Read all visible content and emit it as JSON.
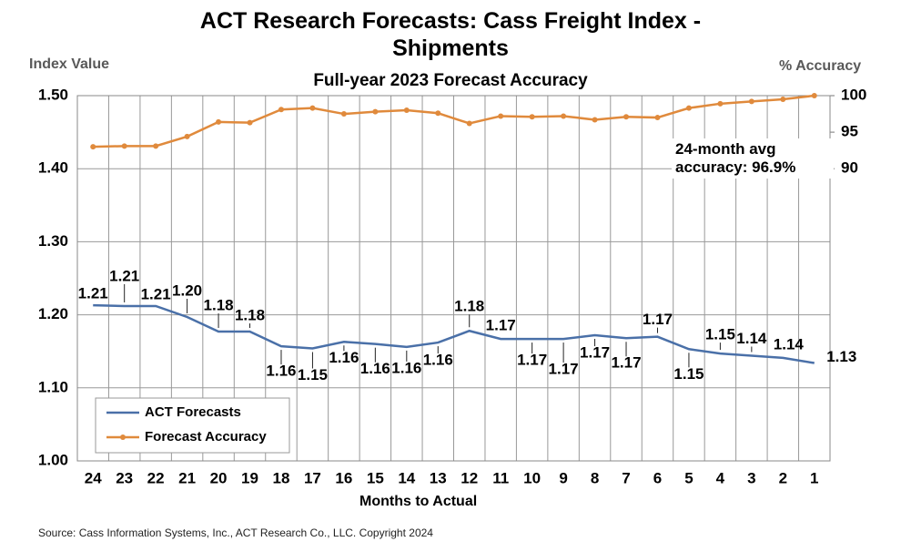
{
  "chart_data": {
    "type": "line",
    "title": "ACT Research Forecasts: Cass Freight Index - Shipments",
    "subtitle": "Full-year 2023 Forecast Accuracy",
    "x_label": "Months to Actual",
    "y_label": "Index Value",
    "y2_label": "% Accuracy",
    "annotation": "24-month avg accuracy: 96.9%",
    "source": "Source: Cass Information Systems, Inc., ACT Research Co., LLC. Copyright 2024",
    "categories": [
      "24",
      "23",
      "22",
      "21",
      "20",
      "19",
      "18",
      "17",
      "16",
      "15",
      "14",
      "13",
      "12",
      "11",
      "10",
      "9",
      "8",
      "7",
      "6",
      "5",
      "4",
      "3",
      "2",
      "1"
    ],
    "ylim": [
      1.0,
      1.5
    ],
    "yticks": [
      {
        "value": 1.0,
        "label": "1.00"
      },
      {
        "value": 1.1,
        "label": "1.10"
      },
      {
        "value": 1.2,
        "label": "1.20"
      },
      {
        "value": 1.3,
        "label": "1.30"
      },
      {
        "value": 1.4,
        "label": "1.40"
      },
      {
        "value": 1.5,
        "label": "1.50"
      }
    ],
    "y2lim": [
      50,
      100
    ],
    "y2ticks": [
      90,
      95,
      100
    ],
    "grid": true,
    "legend": "bottom-left",
    "series": [
      {
        "name": "ACT Forecasts",
        "color": "#4a70a8",
        "values": [
          1.213,
          1.212,
          1.212,
          1.197,
          1.177,
          1.177,
          1.157,
          1.154,
          1.163,
          1.16,
          1.156,
          1.162,
          1.178,
          1.167,
          1.167,
          1.167,
          1.172,
          1.168,
          1.17,
          1.153,
          1.147,
          1.144,
          1.141,
          1.134
        ],
        "value_labels": [
          "1.21",
          "1.21",
          "1.21",
          "1.20",
          "1.18",
          "1.18",
          "1.16",
          "1.15",
          "1.16",
          "1.16",
          "1.16",
          "1.16",
          "1.18",
          "1.17",
          "1.17",
          "1.17",
          "1.17",
          "1.17",
          "1.17",
          "1.15",
          "1.15",
          "1.14",
          "1.14",
          "1.13"
        ]
      },
      {
        "name": "Forecast Accuracy",
        "color": "#e08a3c",
        "axis": "y2",
        "values": [
          93.0,
          93.1,
          93.1,
          94.4,
          96.4,
          96.3,
          98.1,
          98.3,
          97.5,
          97.8,
          98.0,
          97.6,
          96.2,
          97.2,
          97.1,
          97.2,
          96.7,
          97.1,
          97.0,
          98.3,
          98.9,
          99.2,
          99.5,
          100.0
        ]
      }
    ]
  }
}
